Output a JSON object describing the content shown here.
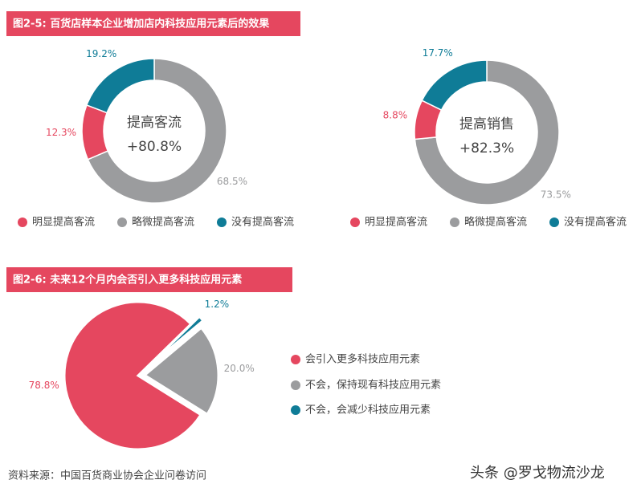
{
  "chart_data": [
    {
      "type": "donut",
      "title": "图2-5: 百货店样本企业增加店内科技应用元素后的效果",
      "center_label": "提高客流",
      "center_value": "+80.8%",
      "categories": [
        "明显提高客流",
        "略微提高客流",
        "没有提高客流"
      ],
      "values": [
        12.3,
        68.5,
        19.2
      ],
      "value_labels": [
        "12.3%",
        "68.5%",
        "19.2%"
      ],
      "colors": [
        "#e5475f",
        "#9b9c9e",
        "#0f7c97"
      ]
    },
    {
      "type": "donut",
      "center_label": "提高销售",
      "center_value": "+82.3%",
      "categories": [
        "明显提高客流",
        "略微提高客流",
        "没有提高客流"
      ],
      "values": [
        8.8,
        73.5,
        17.7
      ],
      "value_labels": [
        "8.8%",
        "73.5%",
        "17.7%"
      ],
      "colors": [
        "#e5475f",
        "#9b9c9e",
        "#0f7c97"
      ]
    },
    {
      "type": "pie",
      "title": "图2-6: 未来12个月内会否引入更多科技应用元素",
      "categories": [
        "会引入更多科技应用元素",
        "不会，保持现有科技应用元素",
        "不会，会减少科技应用元素"
      ],
      "values": [
        78.8,
        20.0,
        1.2
      ],
      "value_labels": [
        "78.8%",
        "20.0%",
        "1.2%"
      ],
      "colors": [
        "#e5475f",
        "#9b9c9e",
        "#0f7c97"
      ]
    }
  ],
  "source": "资料来源：中国百货商业协会企业问卷访问",
  "watermark": "头条 @罗戈物流沙龙"
}
